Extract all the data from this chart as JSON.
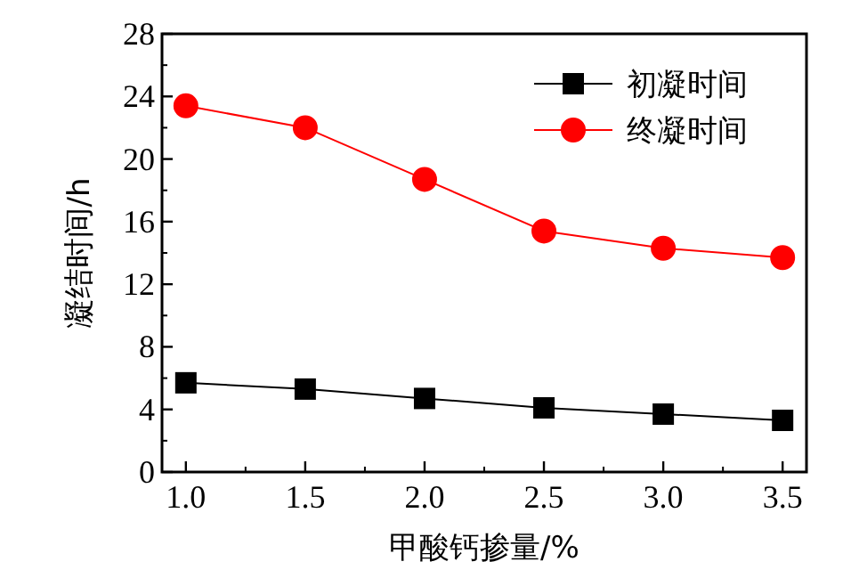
{
  "chart_data": {
    "type": "line",
    "xlabel": "甲酸钙掺量/%",
    "ylabel": "凝结时间/h",
    "x": [
      1.0,
      1.5,
      2.0,
      2.5,
      3.0,
      3.5
    ],
    "xlim": [
      0.9,
      3.6
    ],
    "xticks": [
      {
        "value": 1.0,
        "label": "1.0"
      },
      {
        "value": 1.5,
        "label": "1.5"
      },
      {
        "value": 2.0,
        "label": "2.0"
      },
      {
        "value": 2.5,
        "label": "2.5"
      },
      {
        "value": 3.0,
        "label": "3.0"
      },
      {
        "value": 3.5,
        "label": "3.5"
      }
    ],
    "ylim": [
      0,
      28
    ],
    "yticks": [
      0,
      4,
      8,
      12,
      16,
      20,
      24,
      28
    ],
    "legend": "top right",
    "line_style": "solid",
    "series": [
      {
        "name": "初凝时间",
        "color": "#000000",
        "marker": "square",
        "values": [
          5.7,
          5.3,
          4.7,
          4.1,
          3.7,
          3.3
        ]
      },
      {
        "name": "终凝时间",
        "color": "#ff0000",
        "marker": "circle",
        "values": [
          23.4,
          22.0,
          18.7,
          15.4,
          14.3,
          13.7
        ]
      }
    ]
  }
}
